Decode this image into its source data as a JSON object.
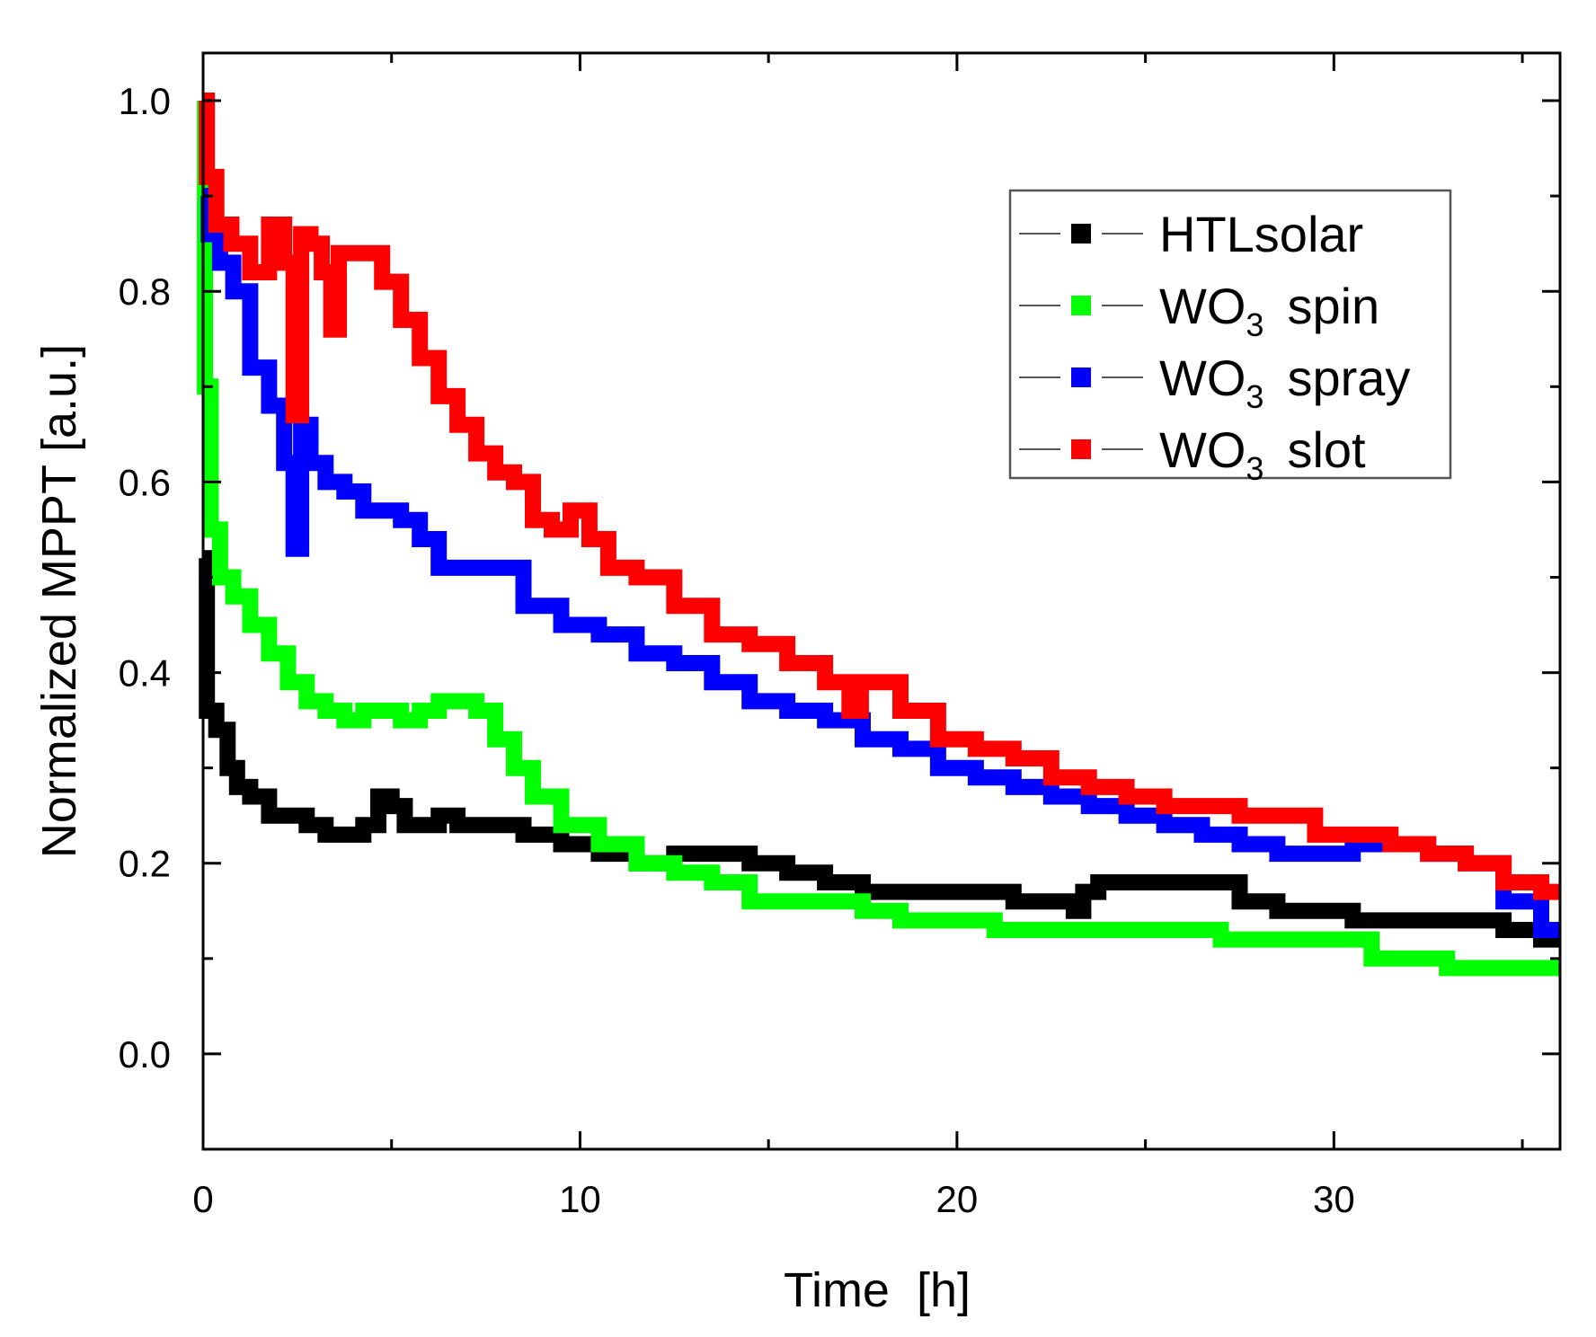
{
  "chart_data": {
    "type": "line",
    "title": "",
    "xlabel": "Time  [h]",
    "ylabel": "Normalized MPPT [a.u.]",
    "xlim": [
      0,
      36
    ],
    "ylim": [
      -0.1,
      1.05
    ],
    "xticks": [
      0,
      10,
      20,
      30
    ],
    "yticks": [
      0.0,
      0.2,
      0.4,
      0.6,
      0.8,
      1.0
    ],
    "xtick_labels": [
      "0",
      "10",
      "20",
      "30"
    ],
    "ytick_labels": [
      "0.0",
      "0.2",
      "0.4",
      "0.6",
      "0.8",
      "1.0"
    ],
    "legend_position": "top-right",
    "series": [
      {
        "name": "HTLsolar",
        "legend_main": "HTLsolar",
        "legend_sub": "",
        "legend_suffix": "",
        "color": "#000000",
        "x": [
          0,
          0.2,
          0.5,
          0.8,
          1.0,
          1.5,
          2.0,
          2.5,
          3.0,
          3.5,
          4.0,
          4.5,
          4.8,
          5.2,
          5.5,
          6.0,
          6.5,
          7.0,
          8.0,
          9.0,
          10.0,
          11.0,
          12.0,
          13.0,
          14.0,
          15.0,
          16.0,
          17.0,
          18.0,
          19.0,
          20.0,
          21.0,
          22.0,
          23.0,
          23.2,
          23.5,
          24.0,
          25.0,
          26.0,
          26.5,
          27.0,
          28.0,
          29.0,
          30.0,
          31.0,
          32.0,
          33.0,
          34.0,
          35.0,
          36.0
        ],
        "y": [
          0.52,
          0.36,
          0.34,
          0.3,
          0.28,
          0.27,
          0.25,
          0.25,
          0.24,
          0.23,
          0.23,
          0.24,
          0.27,
          0.26,
          0.24,
          0.24,
          0.25,
          0.24,
          0.24,
          0.23,
          0.22,
          0.21,
          0.2,
          0.21,
          0.21,
          0.2,
          0.19,
          0.18,
          0.17,
          0.17,
          0.17,
          0.17,
          0.16,
          0.16,
          0.15,
          0.17,
          0.18,
          0.18,
          0.18,
          0.18,
          0.18,
          0.16,
          0.15,
          0.15,
          0.14,
          0.14,
          0.14,
          0.14,
          0.13,
          0.12
        ]
      },
      {
        "name": "WO3 spin",
        "legend_main": "WO",
        "legend_sub": "3",
        "legend_suffix": "spin",
        "color": "#00ff00",
        "x": [
          0,
          0.1,
          0.3,
          0.6,
          1.0,
          1.5,
          2.0,
          2.5,
          3.0,
          3.5,
          4.0,
          4.5,
          5.0,
          5.5,
          6.0,
          6.5,
          7.0,
          7.5,
          8.0,
          8.5,
          9.0,
          10.0,
          11.0,
          12.0,
          13.0,
          14.0,
          15.0,
          16.0,
          17.0,
          18.0,
          19.0,
          20.0,
          22.0,
          24.0,
          26.0,
          28.0,
          30.0,
          32.0,
          34.0,
          36.0
        ],
        "y": [
          1.0,
          0.7,
          0.55,
          0.5,
          0.48,
          0.45,
          0.42,
          0.39,
          0.37,
          0.36,
          0.35,
          0.36,
          0.36,
          0.35,
          0.36,
          0.37,
          0.37,
          0.36,
          0.33,
          0.3,
          0.27,
          0.24,
          0.22,
          0.2,
          0.19,
          0.18,
          0.16,
          0.16,
          0.16,
          0.15,
          0.14,
          0.14,
          0.13,
          0.13,
          0.13,
          0.12,
          0.12,
          0.1,
          0.09,
          0.09
        ]
      },
      {
        "name": "WO3 spray",
        "legend_main": "WO",
        "legend_sub": "3",
        "legend_suffix": "spray",
        "color": "#0000ff",
        "x": [
          0,
          0.3,
          0.6,
          1.0,
          1.5,
          2.0,
          2.3,
          2.5,
          2.7,
          3.0,
          3.5,
          4.0,
          4.5,
          5.0,
          5.5,
          6.0,
          6.5,
          7.0,
          8.0,
          9.0,
          10.0,
          11.0,
          12.0,
          13.0,
          14.0,
          15.0,
          16.0,
          17.0,
          18.0,
          19.0,
          20.0,
          21.0,
          22.0,
          23.0,
          24.0,
          25.0,
          26.0,
          27.0,
          28.0,
          29.0,
          30.0,
          31.0,
          32.0,
          33.0,
          34.0,
          35.0,
          36.0
        ],
        "y": [
          0.9,
          0.86,
          0.83,
          0.8,
          0.72,
          0.68,
          0.62,
          0.53,
          0.66,
          0.62,
          0.6,
          0.59,
          0.57,
          0.57,
          0.56,
          0.54,
          0.51,
          0.51,
          0.51,
          0.47,
          0.45,
          0.44,
          0.42,
          0.41,
          0.39,
          0.37,
          0.36,
          0.35,
          0.33,
          0.32,
          0.3,
          0.29,
          0.28,
          0.27,
          0.26,
          0.25,
          0.24,
          0.23,
          0.22,
          0.21,
          0.21,
          0.22,
          0.22,
          0.21,
          0.2,
          0.16,
          0.13
        ]
      },
      {
        "name": "WO3 slot",
        "legend_main": "WO",
        "legend_sub": "3",
        "legend_suffix": "slot",
        "color": "#ff0000",
        "x": [
          0,
          0.2,
          0.5,
          1.0,
          1.5,
          2.0,
          2.3,
          2.5,
          2.7,
          3.0,
          3.3,
          3.5,
          3.7,
          4.0,
          4.5,
          5.0,
          5.5,
          6.0,
          6.5,
          7.0,
          7.5,
          8.0,
          8.5,
          9.0,
          9.5,
          10.0,
          10.5,
          11.0,
          12.0,
          13.0,
          14.0,
          15.0,
          16.0,
          17.0,
          17.3,
          17.6,
          18.0,
          19.0,
          20.0,
          21.0,
          22.0,
          23.0,
          24.0,
          25.0,
          26.0,
          27.0,
          28.0,
          29.0,
          30.0,
          31.0,
          32.0,
          33.0,
          34.0,
          35.0,
          36.0
        ],
        "y": [
          1.0,
          0.92,
          0.87,
          0.85,
          0.82,
          0.87,
          0.83,
          0.67,
          0.86,
          0.85,
          0.82,
          0.76,
          0.84,
          0.84,
          0.84,
          0.81,
          0.77,
          0.73,
          0.69,
          0.66,
          0.63,
          0.61,
          0.6,
          0.56,
          0.55,
          0.57,
          0.54,
          0.51,
          0.5,
          0.47,
          0.44,
          0.43,
          0.41,
          0.39,
          0.36,
          0.39,
          0.39,
          0.36,
          0.33,
          0.32,
          0.31,
          0.29,
          0.28,
          0.27,
          0.26,
          0.26,
          0.25,
          0.25,
          0.23,
          0.23,
          0.22,
          0.21,
          0.2,
          0.18,
          0.17
        ]
      }
    ]
  }
}
